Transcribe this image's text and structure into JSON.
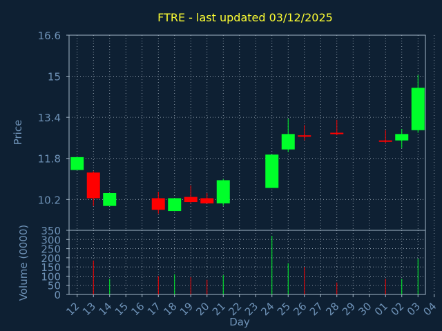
{
  "title": "FTRE - last updated 03/12/2025",
  "colors": {
    "background": "#0e2033",
    "title": "#ffff33",
    "axis_text": "#6f93b8",
    "frame": "#a4b7c8",
    "grid": "#aab7c4",
    "up": "#00ff2a",
    "down": "#ff0000"
  },
  "chart_data": [
    {
      "type": "candlestick",
      "title": "FTRE - last updated 03/12/2025",
      "ylabel": "Price",
      "ylim": [
        9.0,
        16.6
      ],
      "yticks": [
        "16.6",
        "15",
        "13.4",
        "11.8",
        "10.2"
      ],
      "ytick_values": [
        16.6,
        15.0,
        13.4,
        11.8,
        10.2
      ],
      "grid": true,
      "candles": [
        {
          "day": "12",
          "open": 11.35,
          "high": 11.85,
          "low": 11.35,
          "close": 11.85
        },
        {
          "day": "13",
          "open": 11.25,
          "high": 11.3,
          "low": 9.95,
          "close": 10.25
        },
        {
          "day": "14",
          "open": 9.95,
          "high": 10.45,
          "low": 9.95,
          "close": 10.45
        },
        {
          "day": "17",
          "open": 10.25,
          "high": 10.5,
          "low": 9.65,
          "close": 9.8
        },
        {
          "day": "18",
          "open": 9.75,
          "high": 10.25,
          "low": 9.75,
          "close": 10.25
        },
        {
          "day": "19",
          "open": 10.3,
          "high": 10.75,
          "low": 10.05,
          "close": 10.1
        },
        {
          "day": "20",
          "open": 10.25,
          "high": 10.45,
          "low": 10.05,
          "close": 10.05
        },
        {
          "day": "21",
          "open": 10.05,
          "high": 11.0,
          "low": 9.95,
          "close": 10.95
        },
        {
          "day": "24",
          "open": 10.65,
          "high": 11.95,
          "low": 10.65,
          "close": 11.95
        },
        {
          "day": "25",
          "open": 12.15,
          "high": 13.35,
          "low": 12.05,
          "close": 12.75
        },
        {
          "day": "26",
          "open": 12.7,
          "high": 13.1,
          "low": 12.5,
          "close": 12.65
        },
        {
          "day": "28",
          "open": 12.8,
          "high": 13.3,
          "low": 12.7,
          "close": 12.75
        },
        {
          "day": "01",
          "open": 12.5,
          "high": 12.9,
          "low": 12.4,
          "close": 12.45
        },
        {
          "day": "02",
          "open": 12.5,
          "high": 12.95,
          "low": 12.2,
          "close": 12.75
        },
        {
          "day": "03",
          "open": 12.9,
          "high": 15.05,
          "low": 12.8,
          "close": 14.55
        }
      ]
    },
    {
      "type": "bar",
      "ylabel": "Volume (0000)",
      "ylim": [
        0,
        350
      ],
      "yticks": [
        "350",
        "300",
        "250",
        "200",
        "150",
        "100",
        "50",
        "0"
      ],
      "ytick_values": [
        350,
        300,
        250,
        200,
        150,
        100,
        50,
        0
      ],
      "xlabel": "Day",
      "xticks": [
        "12",
        "13",
        "14",
        "15",
        "16",
        "17",
        "18",
        "19",
        "20",
        "21",
        "22",
        "23",
        "24",
        "25",
        "26",
        "27",
        "28",
        "29",
        "30",
        "01",
        "02",
        "03",
        "04"
      ],
      "bars": [
        {
          "day": "13",
          "value": 185,
          "direction": "down"
        },
        {
          "day": "14",
          "value": 85,
          "direction": "up"
        },
        {
          "day": "17",
          "value": 100,
          "direction": "down"
        },
        {
          "day": "18",
          "value": 110,
          "direction": "up"
        },
        {
          "day": "19",
          "value": 95,
          "direction": "down"
        },
        {
          "day": "20",
          "value": 80,
          "direction": "down"
        },
        {
          "day": "21",
          "value": 105,
          "direction": "up"
        },
        {
          "day": "24",
          "value": 320,
          "direction": "up"
        },
        {
          "day": "25",
          "value": 170,
          "direction": "up"
        },
        {
          "day": "26",
          "value": 150,
          "direction": "down"
        },
        {
          "day": "28",
          "value": 65,
          "direction": "down"
        },
        {
          "day": "01",
          "value": 85,
          "direction": "down"
        },
        {
          "day": "02",
          "value": 85,
          "direction": "up"
        },
        {
          "day": "03",
          "value": 195,
          "direction": "up"
        }
      ]
    }
  ]
}
